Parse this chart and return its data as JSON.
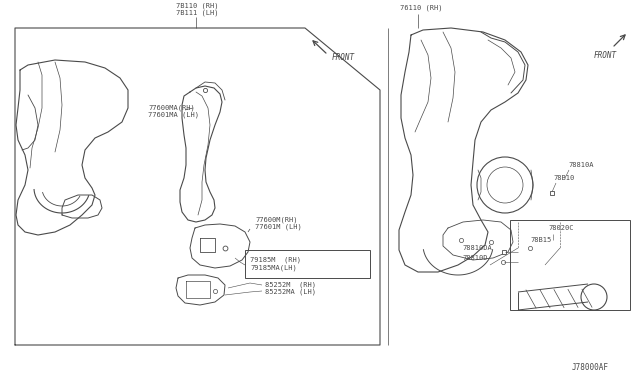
{
  "bg_color": "#ffffff",
  "line_color": "#4a4a4a",
  "text_color": "#4a4a4a",
  "title_bottom": "J78000AF",
  "labels": {
    "7B110": "7B110 (RH)",
    "7B111": "7B111 (LH)",
    "76110": "76110 (RH)",
    "77600MA": "77600MA(RH)",
    "77601MA": "77601MA (LH)",
    "77600M": "77600M(RH)",
    "77601M": "77601M (LH)",
    "79185M": "79185M  (RH)",
    "79185MA": "79185MA(LH)",
    "85252M": "85252M  (RH)",
    "85252MA": "85252MA (LH)",
    "78810A": "78810A",
    "78B10": "78B10",
    "78020C": "78020C",
    "78B15": "78B15",
    "78810DA": "78810DA",
    "78810D": "78810D",
    "FRONT": "FRONT"
  }
}
